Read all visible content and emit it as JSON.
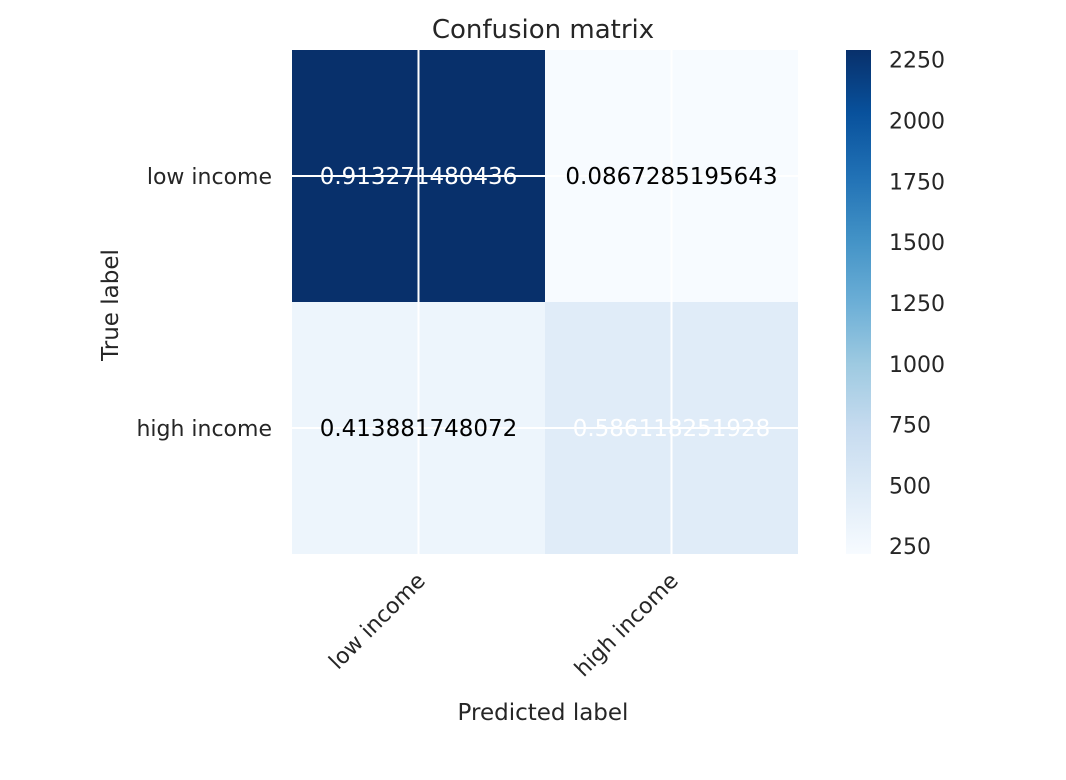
{
  "chart_data": {
    "type": "heatmap",
    "title": "Confusion matrix",
    "xlabel": "Predicted label",
    "ylabel": "True label",
    "x_categories": [
      "low income",
      "high income"
    ],
    "y_categories": [
      "low income",
      "high income"
    ],
    "cell_labels": [
      [
        "0.913271480436",
        "0.0867285195643"
      ],
      [
        "0.413881748072",
        "0.586118251928"
      ]
    ],
    "counts_estimated": [
      [
        2290,
        218
      ],
      [
        322,
        455
      ]
    ],
    "colorbar": {
      "min": 218,
      "max": 2290,
      "ticks": [
        250,
        500,
        750,
        1000,
        1250,
        1500,
        1750,
        2000,
        2250
      ],
      "colormap": "Blues"
    },
    "grid": true,
    "grid_color": "#ffffff",
    "text_color_dark": "#000000",
    "text_color_light": "#ffffff"
  }
}
